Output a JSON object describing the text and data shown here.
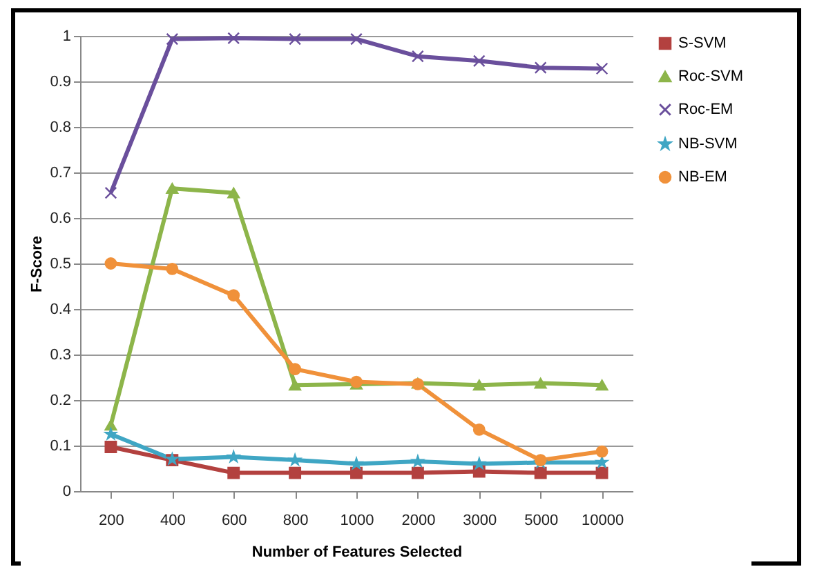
{
  "chart_data": {
    "type": "line",
    "xlabel": "Number of Features Selected",
    "ylabel": "F-Score",
    "categories": [
      "200",
      "400",
      "600",
      "800",
      "1000",
      "2000",
      "3000",
      "5000",
      "10000"
    ],
    "ylim": [
      0,
      1
    ],
    "yticks": [
      0,
      0.1,
      0.2,
      0.3,
      0.4,
      0.5,
      0.6,
      0.7,
      0.8,
      0.9,
      1
    ],
    "grid": "y",
    "legend": "right",
    "line_style": "solid",
    "series": [
      {
        "name": "S-SVM",
        "color": "#b3413f",
        "marker": "square",
        "values": [
          0.097,
          0.068,
          0.04,
          0.04,
          0.04,
          0.04,
          0.043,
          0.04,
          0.04
        ]
      },
      {
        "name": "Roc-SVM",
        "color": "#8db54a",
        "marker": "triangle",
        "values": [
          0.145,
          0.665,
          0.655,
          0.233,
          0.235,
          0.237,
          0.233,
          0.237,
          0.233
        ]
      },
      {
        "name": "Roc-EM",
        "color": "#6a4f9c",
        "marker": "cross",
        "values": [
          0.655,
          0.993,
          0.995,
          0.993,
          0.993,
          0.955,
          0.945,
          0.93,
          0.928
        ]
      },
      {
        "name": "NB-SVM",
        "color": "#3fa6c4",
        "marker": "star",
        "values": [
          0.125,
          0.07,
          0.075,
          0.068,
          0.06,
          0.065,
          0.06,
          0.063,
          0.063
        ]
      },
      {
        "name": "NB-EM",
        "color": "#f0913a",
        "marker": "circle",
        "values": [
          0.5,
          0.488,
          0.43,
          0.268,
          0.24,
          0.235,
          0.135,
          0.068,
          0.087
        ]
      }
    ]
  }
}
